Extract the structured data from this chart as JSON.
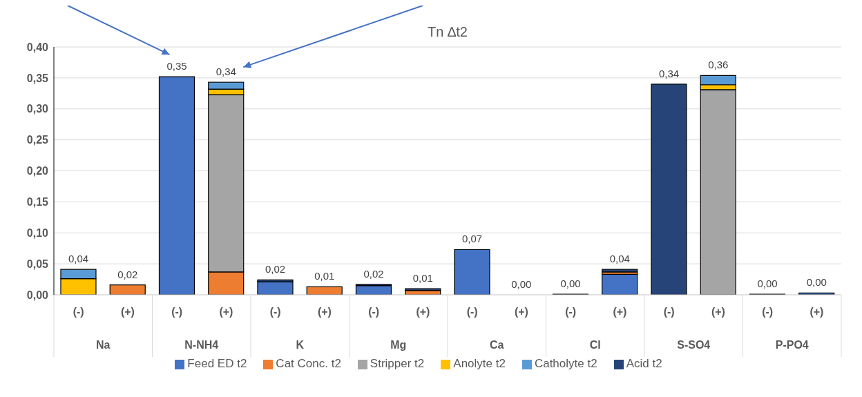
{
  "chart_data": {
    "type": "bar",
    "title": "Tn ∆t2",
    "stacked": true,
    "categories": [
      "(-)",
      "(+)",
      "(-)",
      "(+)",
      "(-)",
      "(+)",
      "(-)",
      "(+)",
      "(-)",
      "(+)",
      "(-)",
      "(+)",
      "(-)",
      "(+)",
      "(-)",
      "(+)"
    ],
    "annotations": [
      "Na",
      "N-NH4",
      "K",
      "Mg",
      "Ca",
      "Cl",
      "S-SO4",
      "P-PO4"
    ],
    "series": [
      {
        "name": "Feed ED t2",
        "color": "#4472c4",
        "values": [
          null,
          null,
          0.352,
          0,
          0.021,
          0,
          0.015,
          0,
          0.073,
          0,
          0,
          0.033,
          0,
          0,
          0,
          0.003
        ]
      },
      {
        "name": "Cat Conc. t2",
        "color": "#ed7d31",
        "values": [
          0,
          0.016,
          0,
          0.037,
          0,
          0.013,
          0,
          0.007,
          0,
          0,
          0,
          0.004,
          0,
          null,
          0,
          0
        ]
      },
      {
        "name": "Stripper t2",
        "color": "#a5a5a5",
        "values": [
          0,
          0,
          0,
          0.286,
          0,
          0,
          0,
          0,
          0,
          0,
          0,
          0,
          0,
          0.331,
          0,
          0
        ]
      },
      {
        "name": "Anolyte t2",
        "color": "#ffc000",
        "values": [
          0.026,
          0,
          0,
          0.009,
          0,
          0,
          0,
          0,
          0,
          0,
          0,
          0,
          0,
          0.008,
          0,
          0
        ]
      },
      {
        "name": "Catholyte t2",
        "color": "#5b9bd5",
        "values": [
          0.015,
          0,
          0,
          0.011,
          0,
          0,
          0,
          0,
          0,
          0,
          0,
          0,
          0,
          0.015,
          0,
          0
        ]
      },
      {
        "name": "Acid t2",
        "color": "#264478",
        "values": [
          0,
          0,
          0,
          0,
          0.003,
          0,
          0.002,
          0.003,
          0,
          null,
          0.001,
          0.004,
          0.34,
          0,
          0.001,
          0
        ]
      }
    ],
    "totals": [
      "0,04",
      "0,02",
      "0,35",
      "0,34",
      "0,02",
      "0,01",
      "0,02",
      "0,01",
      "0,07",
      "0,00",
      "0,00",
      "0,04",
      "0,34",
      "0,36",
      "0,00",
      "0,00"
    ],
    "ylim": [
      0,
      0.4
    ],
    "yticks": [
      {
        "value": 0,
        "label": "0,00"
      },
      {
        "value": 0.05,
        "label": "0,05"
      },
      {
        "value": 0.1,
        "label": "0,10"
      },
      {
        "value": 0.15,
        "label": "0,15"
      },
      {
        "value": 0.2,
        "label": "0,20"
      },
      {
        "value": 0.25,
        "label": "0,25"
      },
      {
        "value": 0.3,
        "label": "0,30"
      },
      {
        "value": 0.35,
        "label": "0,35"
      },
      {
        "value": 0.4,
        "label": "0,40"
      }
    ],
    "grid": "y",
    "legend": "bottom"
  }
}
